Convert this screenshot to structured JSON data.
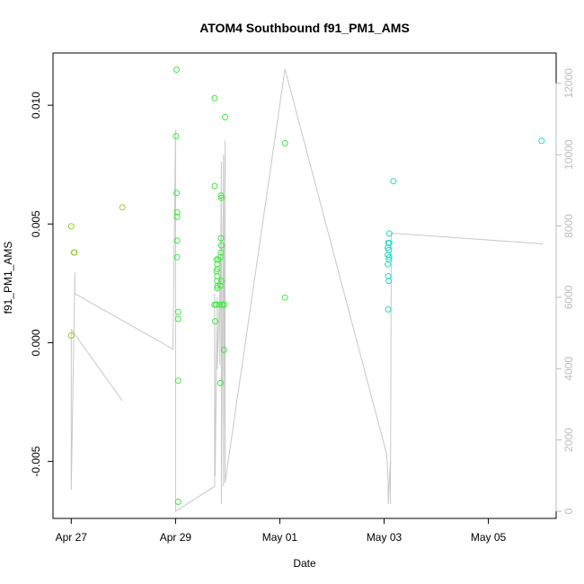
{
  "chart_data": {
    "type": "scatter",
    "title": "ATOM4 Southbound f91_PM1_AMS",
    "xlabel": "Date",
    "ylabel": "f91_PM1_AMS",
    "x_ticks": [
      {
        "label": "Apr 27",
        "t": 0
      },
      {
        "label": "Apr 29",
        "t": 2
      },
      {
        "label": "May 01",
        "t": 4
      },
      {
        "label": "May 03",
        "t": 6
      },
      {
        "label": "May 05",
        "t": 8
      }
    ],
    "y_ticks": [
      {
        "label": "-0.005",
        "v": -0.005
      },
      {
        "label": "0.000",
        "v": 0.0
      },
      {
        "label": "0.005",
        "v": 0.005
      },
      {
        "label": "0.010",
        "v": 0.01
      }
    ],
    "y2_ticks": [
      {
        "label": "0",
        "v": 0
      },
      {
        "label": "2000",
        "v": 2000
      },
      {
        "label": "4000",
        "v": 4000
      },
      {
        "label": "6000",
        "v": 6000
      },
      {
        "label": "8000",
        "v": 8000
      },
      {
        "label": "10000",
        "v": 10000
      },
      {
        "label": "12000",
        "v": 12000
      }
    ],
    "xlim": [
      -0.35,
      9.3
    ],
    "ylim": [
      -0.0074,
      0.0122
    ],
    "y2lim": [
      -200,
      12850
    ],
    "series": [
      {
        "color": "#9acd32",
        "points": [
          [
            0.0,
            0.0049
          ],
          [
            0.0,
            0.0003
          ],
          [
            0.05,
            0.0038
          ],
          [
            0.06,
            0.0038
          ],
          [
            0.98,
            0.0057
          ]
        ]
      },
      {
        "color": "#3ee83e",
        "points": [
          [
            2.02,
            0.0115
          ],
          [
            2.01,
            0.0087
          ],
          [
            2.02,
            0.0063
          ],
          [
            2.03,
            0.0055
          ],
          [
            2.03,
            0.0053
          ],
          [
            2.03,
            0.0043
          ],
          [
            2.03,
            0.0036
          ],
          [
            2.05,
            0.0013
          ],
          [
            2.05,
            0.001
          ],
          [
            2.05,
            -0.0016
          ],
          [
            2.05,
            -0.0067
          ],
          [
            2.75,
            0.0103
          ],
          [
            2.75,
            0.0066
          ],
          [
            2.75,
            0.0016
          ],
          [
            2.76,
            0.0009
          ],
          [
            2.78,
            0.0016
          ],
          [
            2.79,
            0.0035
          ],
          [
            2.8,
            0.0033
          ],
          [
            2.8,
            0.0031
          ],
          [
            2.79,
            0.003
          ],
          [
            2.8,
            0.0028
          ],
          [
            2.8,
            0.0026
          ],
          [
            2.8,
            0.0024
          ],
          [
            2.8,
            0.0023
          ],
          [
            2.82,
            0.0035
          ],
          [
            2.84,
            0.0016
          ],
          [
            2.86,
            0.0024
          ],
          [
            2.87,
            0.0062
          ],
          [
            2.88,
            0.0061
          ],
          [
            2.87,
            0.0044
          ],
          [
            2.88,
            0.0041
          ],
          [
            2.87,
            0.0038
          ],
          [
            2.86,
            0.0036
          ],
          [
            2.88,
            0.0026
          ],
          [
            2.9,
            0.0016
          ],
          [
            2.93,
            0.0016
          ],
          [
            2.86,
            -0.0017
          ],
          [
            2.93,
            -0.0003
          ],
          [
            2.95,
            0.0095
          ],
          [
            4.1,
            0.0084
          ],
          [
            4.1,
            0.0019
          ]
        ]
      },
      {
        "color": "#22dcc8",
        "points": [
          [
            6.08,
            0.0042
          ],
          [
            6.07,
            0.004
          ],
          [
            6.1,
            0.0042
          ],
          [
            6.09,
            0.0039
          ],
          [
            6.07,
            0.0037
          ],
          [
            6.1,
            0.0036
          ],
          [
            6.09,
            0.0035
          ],
          [
            6.07,
            0.0033
          ],
          [
            6.08,
            0.0028
          ],
          [
            6.09,
            0.0026
          ],
          [
            6.08,
            0.0014
          ],
          [
            6.1,
            0.0046
          ],
          [
            6.18,
            0.0068
          ],
          [
            9.02,
            0.0085
          ]
        ]
      }
    ],
    "secondary_series": {
      "color": "#c8c8c8",
      "points": [
        [
          0.0,
          5100
        ],
        [
          0.0,
          600
        ],
        [
          0.07,
          6700
        ],
        [
          0.07,
          6100
        ],
        [
          1.95,
          4550
        ],
        [
          2.0,
          10700
        ],
        [
          2.0,
          500
        ],
        [
          2.0,
          0
        ],
        [
          2.75,
          700
        ],
        [
          2.75,
          6100
        ],
        [
          2.76,
          1000
        ],
        [
          2.8,
          6000
        ],
        [
          2.8,
          4000
        ],
        [
          2.85,
          6200
        ],
        [
          2.85,
          4100
        ],
        [
          2.88,
          9800
        ],
        [
          2.88,
          200
        ],
        [
          2.92,
          10000
        ],
        [
          2.92,
          700
        ],
        [
          2.95,
          10400
        ],
        [
          2.95,
          800
        ],
        [
          4.1,
          12400
        ],
        [
          6.05,
          1600
        ],
        [
          6.08,
          800
        ],
        [
          6.08,
          200
        ],
        [
          6.12,
          1400
        ],
        [
          6.12,
          200
        ],
        [
          6.14,
          7800
        ],
        [
          9.05,
          7500
        ]
      ],
      "tail": [
        [
          0.0,
          5100
        ],
        [
          0.98,
          3100
        ]
      ]
    }
  }
}
